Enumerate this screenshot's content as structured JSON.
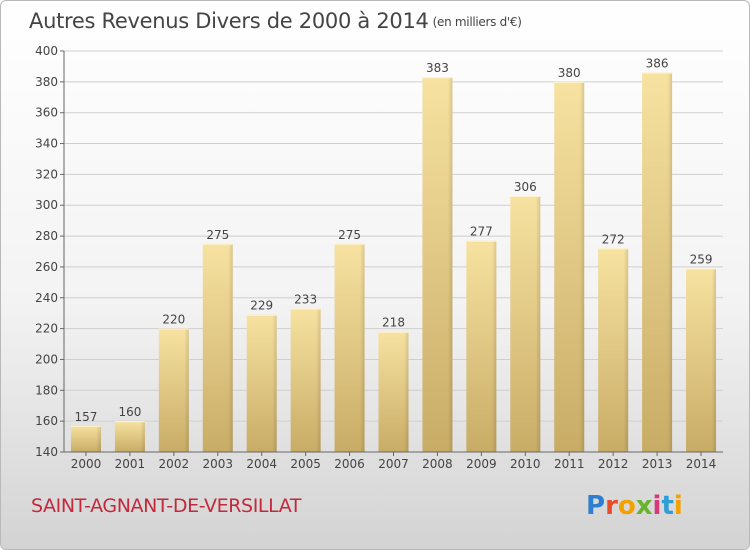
{
  "title": "Autres Revenus Divers de 2000 à 2014",
  "subtitle": "(en milliers d'€)",
  "location": "SAINT-AGNANT-DE-VERSILLAT",
  "brand": "Proxiti",
  "colors": {
    "bar_light": "#f7e2a1",
    "bar_dark": "#c8ac66",
    "grid": "#cfcfcf",
    "location": "#c4293b"
  },
  "chart_data": {
    "type": "bar",
    "categories": [
      "2000",
      "2001",
      "2002",
      "2003",
      "2004",
      "2005",
      "2006",
      "2007",
      "2008",
      "2009",
      "2010",
      "2011",
      "2012",
      "2013",
      "2014"
    ],
    "values": [
      157,
      160,
      220,
      275,
      229,
      233,
      275,
      218,
      383,
      277,
      306,
      380,
      272,
      386,
      259
    ],
    "ylim": [
      140,
      400
    ],
    "yticks": [
      140,
      160,
      180,
      200,
      220,
      240,
      260,
      280,
      300,
      320,
      340,
      360,
      380,
      400
    ],
    "grid": "horizontal",
    "legend": "none"
  }
}
